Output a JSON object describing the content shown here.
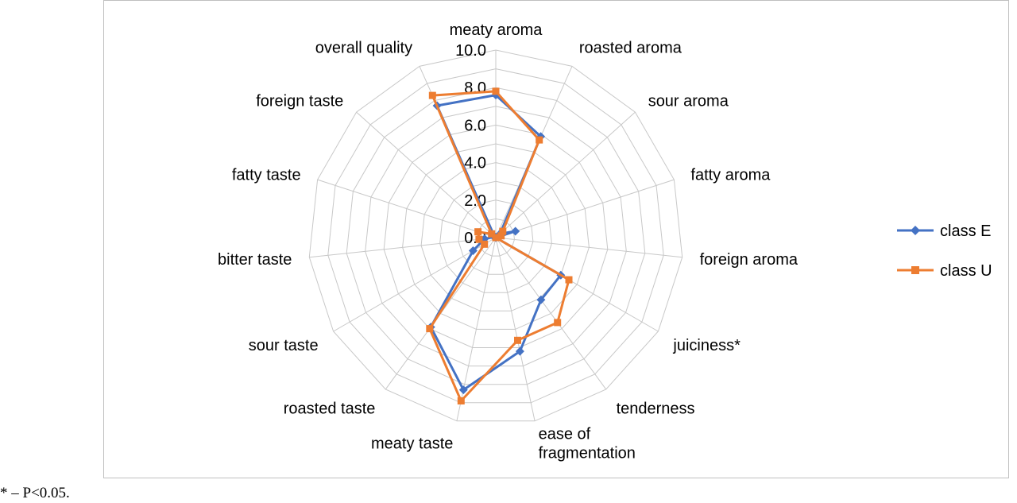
{
  "chart_data": {
    "type": "radar",
    "categories": [
      "meaty aroma",
      "roasted aroma",
      "sour aroma",
      "fatty aroma",
      "foreign aroma",
      "juiciness*",
      "tenderness",
      "ease of fragmentation",
      "meaty taste",
      "roasted taste",
      "sour taste",
      "bitter taste",
      "fatty taste",
      "foreign taste",
      "overall quality"
    ],
    "series": [
      {
        "name": "class E",
        "color": "#4472c4",
        "marker": "diamond",
        "values": [
          7.6,
          5.9,
          0.3,
          1.1,
          0.0,
          4.0,
          4.1,
          6.2,
          8.3,
          5.9,
          1.4,
          0.6,
          0.1,
          0.1,
          7.7
        ]
      },
      {
        "name": "class U",
        "color": "#ed7d31",
        "marker": "square",
        "values": [
          7.8,
          5.7,
          0.5,
          0.3,
          0.0,
          4.5,
          5.6,
          5.6,
          8.9,
          6.0,
          0.7,
          0.9,
          1.0,
          0.3,
          8.3
        ]
      }
    ],
    "rlim": [
      0,
      10
    ],
    "ticks": [
      "0.0",
      "2.0",
      "4.0",
      "6.0",
      "8.0",
      "10.0"
    ],
    "tick_values": [
      0,
      2,
      4,
      6,
      8,
      10
    ],
    "grid": true,
    "legend_position": "right"
  },
  "footnote": "* – P<0.05."
}
